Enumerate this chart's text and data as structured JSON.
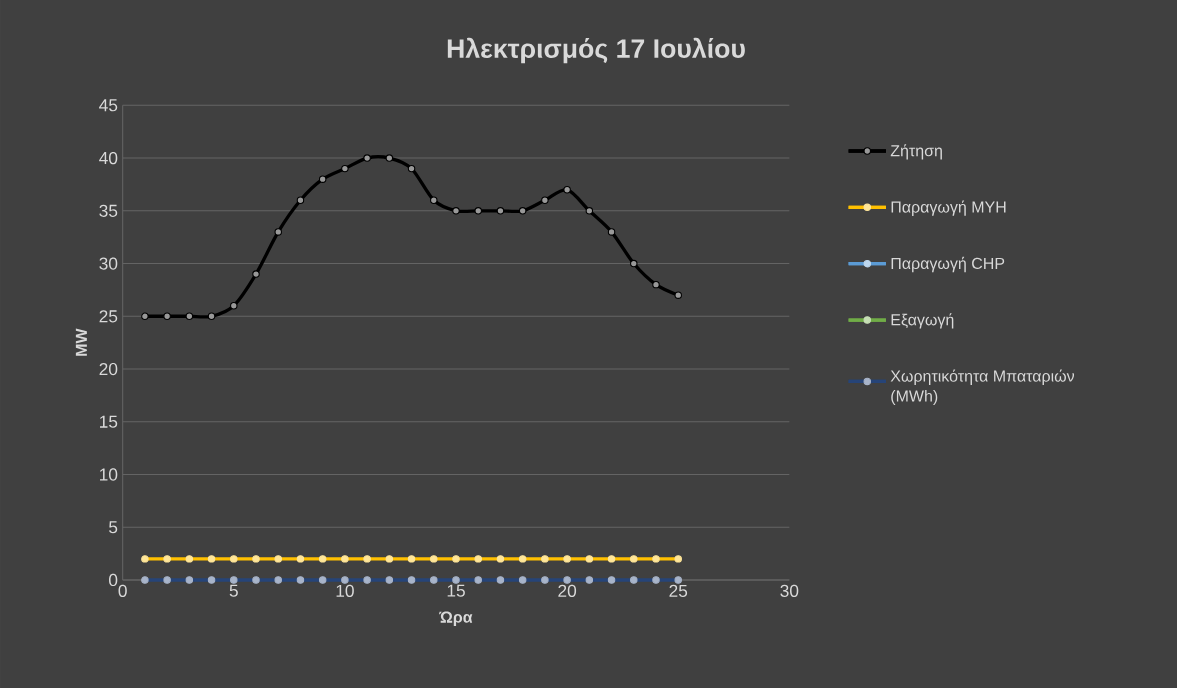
{
  "chart_data": {
    "type": "line",
    "title": "Ηλεκτρισμός 17 Ιουλίου",
    "xlabel": "Ώρα",
    "ylabel": "MW",
    "x": [
      1,
      2,
      3,
      4,
      5,
      6,
      7,
      8,
      9,
      10,
      11,
      12,
      13,
      14,
      15,
      16,
      17,
      18,
      19,
      20,
      21,
      22,
      23,
      24,
      25
    ],
    "series": [
      {
        "name": "Ζήτηση",
        "color": "#000000",
        "values": [
          25,
          25,
          25,
          25,
          26,
          29,
          33,
          36,
          38,
          39,
          40,
          40,
          39,
          36,
          35,
          35,
          35,
          35,
          36,
          37,
          35,
          33,
          30,
          28,
          27
        ]
      },
      {
        "name": "Παραγωγή ΜΥΗ",
        "color": "#ffc000",
        "values": [
          2,
          2,
          2,
          2,
          2,
          2,
          2,
          2,
          2,
          2,
          2,
          2,
          2,
          2,
          2,
          2,
          2,
          2,
          2,
          2,
          2,
          2,
          2,
          2,
          2
        ]
      },
      {
        "name": "Παραγωγή CHP",
        "color": "#5b9bd5",
        "values": [
          null,
          null,
          null,
          null,
          null,
          null,
          null,
          null,
          null,
          null,
          null,
          null,
          null,
          null,
          null,
          null,
          null,
          null,
          null,
          null,
          null,
          null,
          null,
          null,
          null
        ]
      },
      {
        "name": "Εξαγωγή",
        "color": "#70ad47",
        "values": [
          null,
          null,
          null,
          null,
          null,
          null,
          null,
          null,
          null,
          null,
          null,
          null,
          null,
          null,
          null,
          null,
          null,
          null,
          null,
          null,
          null,
          null,
          null,
          null,
          null
        ]
      },
      {
        "name": "Χωρητικότητα Μπαταριών (MWh)",
        "color": "#264478",
        "values": [
          0,
          0,
          0,
          0,
          0,
          0,
          0,
          0,
          0,
          0,
          0,
          0,
          0,
          0,
          0,
          0,
          0,
          0,
          0,
          0,
          0,
          0,
          0,
          0,
          0
        ]
      }
    ],
    "xlim": [
      0,
      30
    ],
    "xticks": [
      0,
      5,
      10,
      15,
      20,
      25,
      30
    ],
    "ylim": [
      0,
      45
    ],
    "yticks": [
      0,
      5,
      10,
      15,
      20,
      25,
      30,
      35,
      40,
      45
    ],
    "grid": "y",
    "legend": "right",
    "marker": "circle",
    "line_style": "solid"
  }
}
